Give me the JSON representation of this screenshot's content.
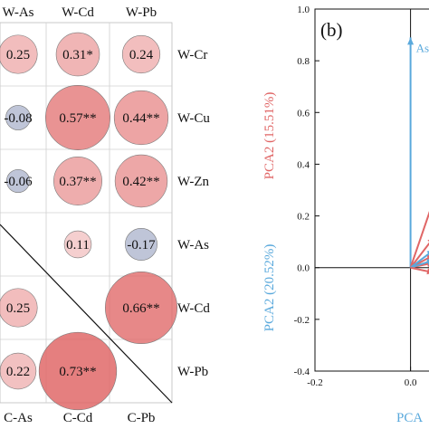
{
  "colors": {
    "positive": "#e06666",
    "negative": "#8a95b8",
    "circle_stroke": "#7a7a7a",
    "pca_red": "#e06666",
    "pca_blue": "#5aa9dc",
    "axis": "#111111"
  },
  "chart_data": [
    {
      "type": "heatmap",
      "columns": [
        "W-As",
        "W-Cd",
        "W-Pb"
      ],
      "rows": [
        "W-Cr",
        "W-Cu",
        "W-Zn",
        "W-As",
        "W-Cd",
        "W-Pb"
      ],
      "bottom_labels": [
        "C-As",
        "C-Cd",
        "C-Pb"
      ],
      "cells": [
        {
          "row": 0,
          "col": 0,
          "value": 0.25,
          "label": "0.25"
        },
        {
          "row": 0,
          "col": 1,
          "value": 0.31,
          "label": "0.31*"
        },
        {
          "row": 0,
          "col": 2,
          "value": 0.24,
          "label": "0.24"
        },
        {
          "row": 1,
          "col": 0,
          "value": -0.08,
          "label": "-0.08"
        },
        {
          "row": 1,
          "col": 1,
          "value": 0.57,
          "label": "0.57**"
        },
        {
          "row": 1,
          "col": 2,
          "value": 0.44,
          "label": "0.44**"
        },
        {
          "row": 2,
          "col": 0,
          "value": -0.06,
          "label": "-0.06"
        },
        {
          "row": 2,
          "col": 1,
          "value": 0.37,
          "label": "0.37**"
        },
        {
          "row": 2,
          "col": 2,
          "value": 0.42,
          "label": "0.42**"
        },
        {
          "row": 3,
          "col": 1,
          "value": 0.11,
          "label": "0.11"
        },
        {
          "row": 3,
          "col": 2,
          "value": -0.17,
          "label": "-0.17"
        },
        {
          "row": 4,
          "col": 0,
          "value": 0.25,
          "label": "0.25"
        },
        {
          "row": 4,
          "col": 2,
          "value": 0.66,
          "label": "0.66**"
        },
        {
          "row": 5,
          "col": 0,
          "value": 0.22,
          "label": "0.22"
        },
        {
          "row": 5,
          "col": 1,
          "value": 0.73,
          "label": "0.73**"
        }
      ]
    },
    {
      "type": "line",
      "panel_label": "(b)",
      "xlabel": "PCA",
      "ylabel_red": "PCA2 (15.51%)",
      "ylabel_blue": "PCA2 (20.52%)",
      "xlim": [
        -0.2,
        0.05
      ],
      "ylim": [
        -0.4,
        1.0
      ],
      "xticks": [
        "-0.2",
        "0.0"
      ],
      "yticks": [
        "-0.4",
        "-0.2",
        "0.0",
        "0.2",
        "0.4",
        "0.6",
        "0.8",
        "1.0"
      ],
      "vectors": [
        {
          "label": "As",
          "color": "blue",
          "x": 0.0,
          "y": 0.89
        },
        {
          "label": "",
          "color": "red",
          "x": 0.05,
          "y": 0.27
        },
        {
          "label": "",
          "color": "red",
          "x": 0.05,
          "y": 0.12
        },
        {
          "label": "",
          "color": "red",
          "x": 0.05,
          "y": 0.05
        },
        {
          "label": "",
          "color": "red",
          "x": 0.05,
          "y": 0.02
        },
        {
          "label": "",
          "color": "blue",
          "x": 0.05,
          "y": 0.07
        },
        {
          "label": "",
          "color": "blue",
          "x": 0.05,
          "y": 0.03
        },
        {
          "label": "",
          "color": "red",
          "x": 0.05,
          "y": -0.02
        }
      ]
    }
  ]
}
